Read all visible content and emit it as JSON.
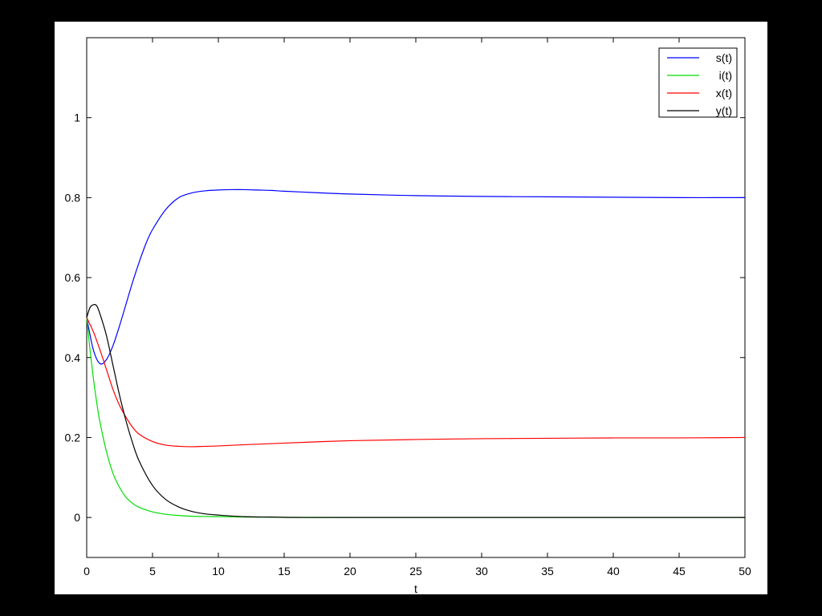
{
  "chart_data": {
    "type": "line",
    "title": "",
    "xlabel": "t",
    "ylabel": "",
    "xlim": [
      0,
      50
    ],
    "ylim": [
      -0.1,
      1.2
    ],
    "x_ticks": [
      0,
      5,
      10,
      15,
      20,
      25,
      30,
      35,
      40,
      45,
      50
    ],
    "x_tick_labels": [
      "0",
      "5",
      "10",
      "15",
      "20",
      "25",
      "30",
      "35",
      "40",
      "45",
      "50"
    ],
    "y_ticks": [
      0,
      0.2,
      0.4,
      0.6,
      0.8,
      1.0
    ],
    "y_tick_labels": [
      "0",
      "0.2",
      "0.4",
      "0.6",
      "0.8",
      "1"
    ],
    "grid": false,
    "legend_position": "top-right",
    "series": [
      {
        "name": "s(t)",
        "color": "#0000ff",
        "x": [
          0,
          0.5,
          1,
          1.5,
          2,
          2.5,
          3,
          3.5,
          4,
          4.5,
          5,
          6,
          7,
          8,
          9,
          10,
          11,
          12,
          13,
          14,
          15,
          17,
          20,
          25,
          30,
          35,
          40,
          45,
          50
        ],
        "y": [
          0.5,
          0.42,
          0.385,
          0.395,
          0.43,
          0.48,
          0.535,
          0.59,
          0.64,
          0.685,
          0.72,
          0.77,
          0.8,
          0.812,
          0.817,
          0.819,
          0.82,
          0.82,
          0.819,
          0.818,
          0.816,
          0.813,
          0.809,
          0.805,
          0.803,
          0.802,
          0.801,
          0.8,
          0.8
        ]
      },
      {
        "name": "i(t)",
        "color": "#00dd00",
        "x": [
          0,
          0.25,
          0.5,
          0.75,
          1,
          1.5,
          2,
          2.5,
          3,
          3.5,
          4,
          5,
          6,
          7,
          8,
          10,
          12,
          15,
          20,
          30,
          40,
          50
        ],
        "y": [
          0.5,
          0.42,
          0.35,
          0.29,
          0.24,
          0.165,
          0.11,
          0.075,
          0.05,
          0.035,
          0.025,
          0.014,
          0.008,
          0.005,
          0.003,
          0.002,
          0.001,
          0.0005,
          0,
          0,
          0,
          0
        ]
      },
      {
        "name": "x(t)",
        "color": "#ff0000",
        "x": [
          0,
          0.5,
          1,
          1.5,
          2,
          2.5,
          3,
          3.5,
          4,
          5,
          6,
          7,
          8,
          9,
          10,
          12,
          15,
          20,
          25,
          30,
          35,
          40,
          45,
          50
        ],
        "y": [
          0.5,
          0.465,
          0.42,
          0.37,
          0.32,
          0.28,
          0.25,
          0.225,
          0.208,
          0.19,
          0.181,
          0.178,
          0.177,
          0.178,
          0.179,
          0.182,
          0.186,
          0.192,
          0.195,
          0.197,
          0.198,
          0.199,
          0.199,
          0.2
        ]
      },
      {
        "name": "y(t)",
        "color": "#000000",
        "x": [
          0,
          0.25,
          0.5,
          0.75,
          1,
          1.5,
          2,
          2.5,
          3,
          3.5,
          4,
          5,
          6,
          7,
          8,
          9,
          10,
          12,
          14,
          16,
          20,
          30,
          40,
          50
        ],
        "y": [
          0.5,
          0.525,
          0.532,
          0.53,
          0.51,
          0.455,
          0.38,
          0.305,
          0.24,
          0.185,
          0.14,
          0.08,
          0.045,
          0.026,
          0.015,
          0.009,
          0.006,
          0.002,
          0.001,
          0,
          0,
          0,
          0,
          0
        ]
      }
    ]
  }
}
